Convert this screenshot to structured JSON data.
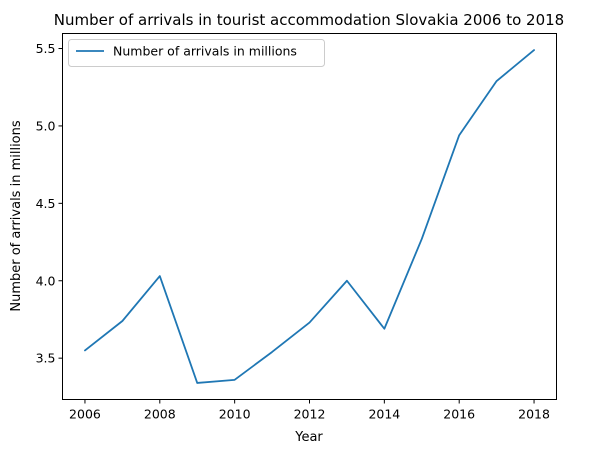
{
  "chart_data": {
    "type": "line",
    "title": "Number of arrivals in tourist accommodation Slovakia 2006 to 2018",
    "xlabel": "Year",
    "ylabel": "Number of arrivals in millions",
    "x": [
      2006,
      2007,
      2008,
      2009,
      2010,
      2011,
      2012,
      2013,
      2014,
      2015,
      2016,
      2017,
      2018
    ],
    "series": [
      {
        "name": "Number of arrivals in millions",
        "color": "#1f77b4",
        "values": [
          3.55,
          3.74,
          4.03,
          3.34,
          3.36,
          3.54,
          3.73,
          4.0,
          3.69,
          4.27,
          4.94,
          5.29,
          5.49
        ]
      }
    ],
    "xlim": [
      2005.4,
      2018.6
    ],
    "ylim": [
      3.233,
      5.597
    ],
    "xticks": [
      2006,
      2008,
      2010,
      2012,
      2014,
      2016,
      2018
    ],
    "yticks": [
      3.5,
      4.0,
      4.5,
      5.0,
      5.5
    ],
    "ytick_labels": [
      "3.5",
      "4.0",
      "4.5",
      "5.0",
      "5.5"
    ],
    "grid": false,
    "legend_position": "top-left"
  }
}
